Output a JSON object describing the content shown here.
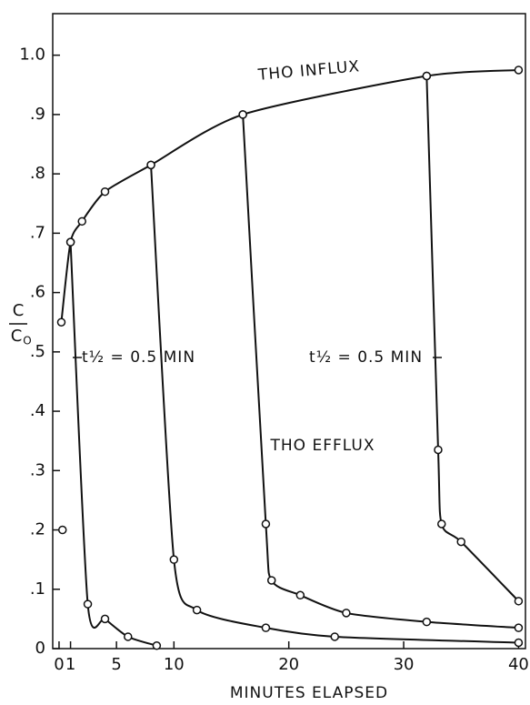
{
  "chart_data": {
    "type": "line",
    "xlabel": "MINUTES ELAPSED",
    "ylabel_top": "C",
    "ylabel_bottom": "C",
    "ylabel_sub": "O",
    "annotations": [
      "THO INFLUX",
      "THO EFFLUX",
      "t½ = 0.5 MIN",
      "t½ = 0.5 MIN"
    ],
    "xlim": [
      -0.55,
      40.6
    ],
    "xticks": [
      0,
      1,
      5,
      10,
      20,
      30,
      40
    ],
    "ylim": [
      0,
      1.07
    ],
    "yticks": [
      0,
      {
        "value": 0.1,
        "label": ".1"
      },
      {
        "value": 0.2,
        "label": ".2"
      },
      {
        "value": 0.3,
        "label": ".3"
      },
      {
        "value": 0.4,
        "label": ".4"
      },
      {
        "value": 0.5,
        "label": ".5"
      },
      {
        "value": 0.6,
        "label": ".6"
      },
      {
        "value": 0.7,
        "label": ".7"
      },
      {
        "value": 0.8,
        "label": ".8"
      },
      {
        "value": 0.9,
        "label": ".9"
      },
      {
        "value": 1.0,
        "label": "1.0"
      }
    ],
    "color": "#111111",
    "series": [
      {
        "x": [
          0.2,
          1,
          2,
          4,
          8,
          16,
          32,
          40
        ],
        "y": [
          0.55,
          0.685,
          0.72,
          0.77,
          0.815,
          0.9,
          0.965,
          0.975
        ]
      },
      {
        "x": [
          1,
          2.5,
          4,
          6,
          8.5
        ],
        "y": [
          0.685,
          0.075,
          0.05,
          0.02,
          0.005
        ]
      },
      {
        "x": [
          8,
          10,
          12,
          18,
          24,
          40
        ],
        "y": [
          0.815,
          0.15,
          0.065,
          0.035,
          0.02,
          0.01
        ]
      },
      {
        "x": [
          16,
          18,
          18.5,
          21,
          25,
          32,
          40
        ],
        "y": [
          0.9,
          0.21,
          0.115,
          0.09,
          0.06,
          0.045,
          0.035
        ]
      },
      {
        "x": [
          32,
          33,
          33.3,
          35,
          40
        ],
        "y": [
          0.965,
          0.335,
          0.21,
          0.18,
          0.08
        ]
      },
      {
        "x": [
          0.3
        ],
        "y": [
          0.2
        ],
        "line": false
      }
    ]
  }
}
